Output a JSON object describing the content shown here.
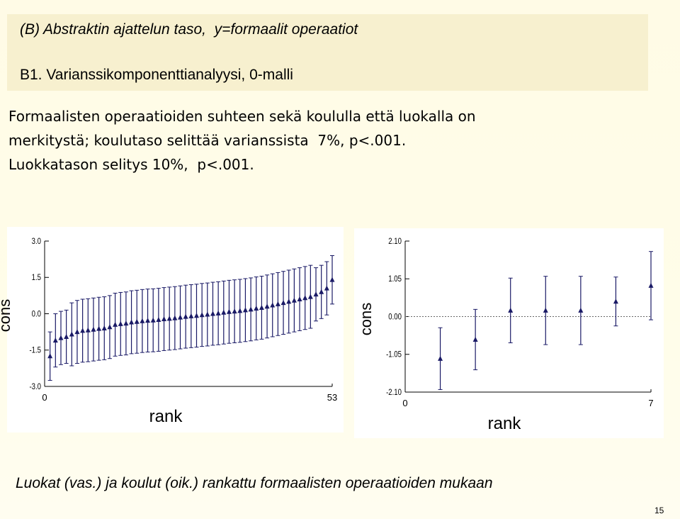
{
  "slide": {
    "title": "(B) Abstraktin ajattelun taso,  y=formaalit operaatiot",
    "subtitle": "B1. Varianssikomponenttianalyysi, 0-malli",
    "body": [
      "Formaalisten operaatioiden suhteen sekä koululla että luokalla on",
      "merkitystä; koulutaso selittää varianssista  7%, p<.001.",
      "Luokkatason selitys 10%,  p<.001."
    ],
    "caption": "Luokat (vas.) ja koulut (oik.) rankattu formaalisten operaatioiden mukaan",
    "page": "15"
  },
  "chart_data": [
    {
      "type": "caterpillar",
      "xlabel": "rank",
      "ylabel": "cons",
      "color": "#1a1a66",
      "zero_line": false,
      "x": [
        1,
        2,
        3,
        4,
        5,
        6,
        7,
        8,
        9,
        10,
        11,
        12,
        13,
        14,
        15,
        16,
        17,
        18,
        19,
        20,
        21,
        22,
        23,
        24,
        25,
        26,
        27,
        28,
        29,
        30,
        31,
        32,
        33,
        34,
        35,
        36,
        37,
        38,
        39,
        40,
        41,
        42,
        43,
        44,
        45,
        46,
        47,
        48,
        49,
        50,
        51,
        52,
        53
      ],
      "values": [
        -1.75,
        -1.1,
        -1.0,
        -0.95,
        -0.85,
        -0.75,
        -0.7,
        -0.68,
        -0.65,
        -0.62,
        -0.6,
        -0.55,
        -0.45,
        -0.42,
        -0.4,
        -0.35,
        -0.33,
        -0.3,
        -0.28,
        -0.27,
        -0.25,
        -0.22,
        -0.2,
        -0.18,
        -0.15,
        -0.12,
        -0.1,
        -0.08,
        -0.05,
        -0.03,
        0.0,
        0.02,
        0.05,
        0.08,
        0.1,
        0.12,
        0.15,
        0.18,
        0.22,
        0.25,
        0.3,
        0.35,
        0.4,
        0.45,
        0.5,
        0.55,
        0.6,
        0.65,
        0.7,
        0.8,
        0.9,
        1.05,
        1.4
      ],
      "errors": [
        1.0,
        1.1,
        1.1,
        1.1,
        1.3,
        1.3,
        1.3,
        1.3,
        1.3,
        1.3,
        1.3,
        1.3,
        1.3,
        1.3,
        1.3,
        1.3,
        1.3,
        1.3,
        1.3,
        1.3,
        1.3,
        1.3,
        1.3,
        1.3,
        1.3,
        1.3,
        1.3,
        1.3,
        1.3,
        1.3,
        1.3,
        1.3,
        1.3,
        1.3,
        1.3,
        1.3,
        1.3,
        1.3,
        1.3,
        1.3,
        1.3,
        1.3,
        1.3,
        1.3,
        1.3,
        1.3,
        1.3,
        1.3,
        1.3,
        1.1,
        1.1,
        1.1,
        1.0
      ],
      "xlim": [
        0,
        53
      ],
      "xticks": [
        0,
        53
      ],
      "ylim": [
        -3,
        3
      ],
      "yticks": [
        {
          "value": 3,
          "label": "3.0"
        },
        {
          "value": 1.5,
          "label": "1.5"
        },
        {
          "value": 0,
          "label": "0.0"
        },
        {
          "value": -1.5,
          "label": "-1.5"
        },
        {
          "value": -3,
          "label": "-3.0"
        }
      ]
    },
    {
      "type": "caterpillar",
      "xlabel": "rank",
      "ylabel": "cons",
      "color": "#1a1a66",
      "zero_line": true,
      "x": [
        1,
        2,
        3,
        4,
        5,
        6,
        7
      ],
      "values": [
        -1.17,
        -0.64,
        0.17,
        0.17,
        0.17,
        0.42,
        0.86
      ],
      "errors": [
        0.86,
        0.84,
        0.9,
        0.95,
        0.95,
        0.68,
        0.95
      ],
      "xlim": [
        0,
        7
      ],
      "xticks": [
        0,
        7
      ],
      "ylim": [
        -2.1,
        2.1
      ],
      "yticks": [
        {
          "value": 2.1,
          "label": "2.10"
        },
        {
          "value": 1.05,
          "label": "1.05"
        },
        {
          "value": 0,
          "label": "0.00"
        },
        {
          "value": -1.05,
          "label": "-1.05"
        },
        {
          "value": -2.1,
          "label": "-2.10"
        }
      ]
    }
  ]
}
